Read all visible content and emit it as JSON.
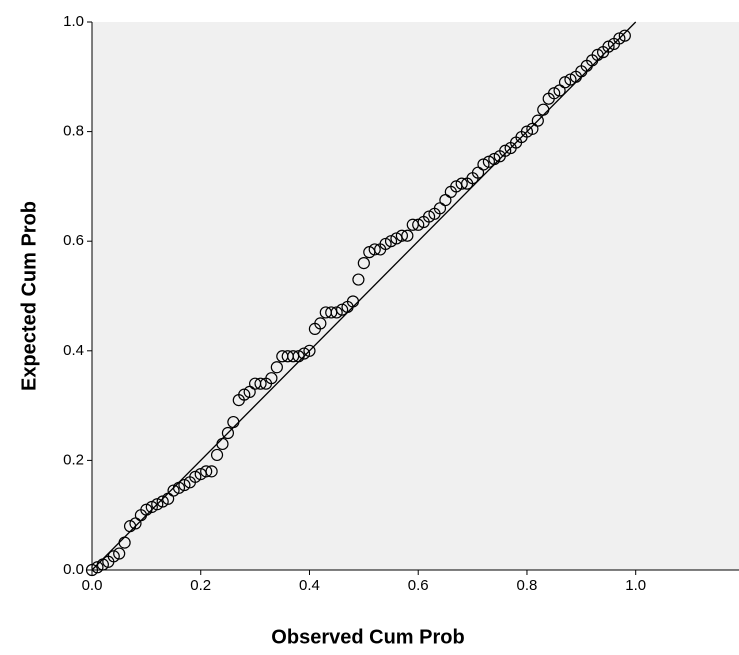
{
  "chart_data": {
    "type": "scatter",
    "xlabel": "Observed Cum Prob",
    "ylabel": "Expected Cum Prob",
    "xlim": [
      0,
      1.19
    ],
    "ylim": [
      0,
      1
    ],
    "xticks": [
      {
        "value": 0,
        "label": "0.0"
      },
      {
        "value": 0.2,
        "label": "0.2"
      },
      {
        "value": 0.4,
        "label": "0.4"
      },
      {
        "value": 0.6,
        "label": "0.6"
      },
      {
        "value": 0.8,
        "label": "0.8"
      },
      {
        "value": 1,
        "label": "1.0"
      }
    ],
    "yticks": [
      {
        "value": 0,
        "label": "0.0"
      },
      {
        "value": 0.2,
        "label": "0.2"
      },
      {
        "value": 0.4,
        "label": "0.4"
      },
      {
        "value": 0.6,
        "label": "0.6"
      },
      {
        "value": 0.8,
        "label": "0.8"
      },
      {
        "value": 1,
        "label": "1.0"
      }
    ],
    "reference_line": true,
    "series": [
      {
        "color": "#000000",
        "x": [
          0.0,
          0.01,
          0.02,
          0.03,
          0.04,
          0.05,
          0.06,
          0.07,
          0.08,
          0.09,
          0.1,
          0.11,
          0.12,
          0.13,
          0.14,
          0.15,
          0.16,
          0.17,
          0.18,
          0.19,
          0.2,
          0.21,
          0.22,
          0.23,
          0.24,
          0.25,
          0.26,
          0.27,
          0.28,
          0.29,
          0.3,
          0.31,
          0.32,
          0.33,
          0.34,
          0.35,
          0.36,
          0.37,
          0.38,
          0.39,
          0.4,
          0.41,
          0.42,
          0.43,
          0.44,
          0.45,
          0.46,
          0.47,
          0.48,
          0.49,
          0.5,
          0.51,
          0.52,
          0.53,
          0.54,
          0.55,
          0.56,
          0.57,
          0.58,
          0.59,
          0.6,
          0.61,
          0.62,
          0.63,
          0.64,
          0.65,
          0.66,
          0.67,
          0.68,
          0.69,
          0.7,
          0.71,
          0.72,
          0.73,
          0.74,
          0.75,
          0.76,
          0.77,
          0.78,
          0.79,
          0.8,
          0.81,
          0.82,
          0.83,
          0.84,
          0.85,
          0.86,
          0.87,
          0.88,
          0.89,
          0.9,
          0.91,
          0.92,
          0.93,
          0.94,
          0.95,
          0.96,
          0.97,
          0.98
        ],
        "y": [
          0.0,
          0.005,
          0.01,
          0.015,
          0.025,
          0.03,
          0.05,
          0.08,
          0.085,
          0.1,
          0.11,
          0.115,
          0.12,
          0.125,
          0.13,
          0.145,
          0.15,
          0.155,
          0.16,
          0.17,
          0.175,
          0.18,
          0.18,
          0.21,
          0.23,
          0.25,
          0.27,
          0.31,
          0.32,
          0.325,
          0.34,
          0.34,
          0.34,
          0.35,
          0.37,
          0.39,
          0.39,
          0.39,
          0.39,
          0.395,
          0.4,
          0.44,
          0.45,
          0.47,
          0.47,
          0.47,
          0.475,
          0.48,
          0.49,
          0.53,
          0.56,
          0.58,
          0.585,
          0.585,
          0.595,
          0.6,
          0.605,
          0.61,
          0.61,
          0.63,
          0.63,
          0.635,
          0.645,
          0.65,
          0.66,
          0.675,
          0.69,
          0.7,
          0.705,
          0.705,
          0.715,
          0.725,
          0.74,
          0.745,
          0.75,
          0.755,
          0.765,
          0.77,
          0.78,
          0.79,
          0.8,
          0.805,
          0.82,
          0.84,
          0.86,
          0.87,
          0.875,
          0.89,
          0.895,
          0.9,
          0.91,
          0.92,
          0.93,
          0.94,
          0.945,
          0.955,
          0.96,
          0.97,
          0.975
        ]
      }
    ]
  }
}
